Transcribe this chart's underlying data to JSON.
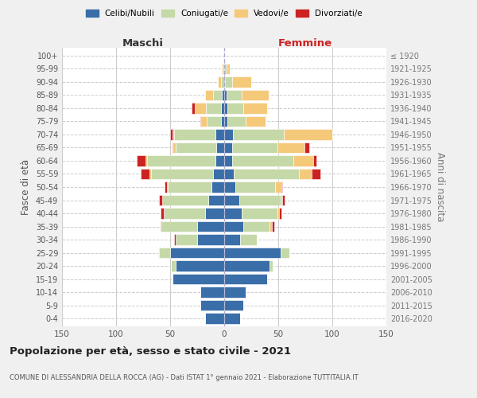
{
  "age_groups": [
    "0-4",
    "5-9",
    "10-14",
    "15-19",
    "20-24",
    "25-29",
    "30-34",
    "35-39",
    "40-44",
    "45-49",
    "50-54",
    "55-59",
    "60-64",
    "65-69",
    "70-74",
    "75-79",
    "80-84",
    "85-89",
    "90-94",
    "95-99",
    "100+"
  ],
  "birth_years": [
    "2016-2020",
    "2011-2015",
    "2006-2010",
    "2001-2005",
    "1996-2000",
    "1991-1995",
    "1986-1990",
    "1981-1985",
    "1976-1980",
    "1971-1975",
    "1966-1970",
    "1961-1965",
    "1956-1960",
    "1951-1955",
    "1946-1950",
    "1941-1945",
    "1936-1940",
    "1931-1935",
    "1926-1930",
    "1921-1925",
    "≤ 1920"
  ],
  "maschi": {
    "celibi": [
      18,
      22,
      22,
      48,
      45,
      50,
      25,
      25,
      18,
      15,
      12,
      10,
      8,
      7,
      8,
      3,
      3,
      2,
      0,
      0,
      0
    ],
    "coniugati": [
      0,
      0,
      0,
      0,
      4,
      10,
      20,
      33,
      38,
      42,
      40,
      58,
      63,
      38,
      38,
      13,
      14,
      8,
      3,
      1,
      0
    ],
    "vedovi": [
      0,
      0,
      0,
      0,
      0,
      1,
      0,
      0,
      0,
      0,
      1,
      1,
      2,
      2,
      2,
      5,
      10,
      8,
      3,
      1,
      0
    ],
    "divorziati": [
      0,
      0,
      0,
      0,
      0,
      0,
      1,
      1,
      3,
      3,
      2,
      8,
      8,
      1,
      2,
      1,
      3,
      0,
      0,
      0,
      0
    ]
  },
  "femmine": {
    "nubili": [
      15,
      18,
      20,
      40,
      42,
      52,
      15,
      18,
      16,
      14,
      10,
      9,
      7,
      7,
      8,
      3,
      3,
      2,
      1,
      0,
      0
    ],
    "coniugate": [
      0,
      0,
      0,
      0,
      3,
      8,
      15,
      24,
      33,
      38,
      37,
      60,
      57,
      42,
      47,
      17,
      15,
      14,
      6,
      2,
      0
    ],
    "vedove": [
      0,
      0,
      0,
      0,
      0,
      0,
      0,
      2,
      2,
      2,
      6,
      12,
      18,
      25,
      45,
      18,
      22,
      25,
      18,
      3,
      0
    ],
    "divorziate": [
      0,
      0,
      0,
      0,
      0,
      0,
      0,
      2,
      2,
      2,
      1,
      8,
      3,
      5,
      0,
      0,
      0,
      0,
      0,
      0,
      0
    ]
  },
  "colors": {
    "celibi": "#3a6ea8",
    "coniugati": "#c5d9a8",
    "vedovi": "#f5c97a",
    "divorziati": "#cc2222"
  },
  "xlim": 150,
  "title": "Popolazione per età, sesso e stato civile - 2021",
  "subtitle": "COMUNE DI ALESSANDRIA DELLA ROCCA (AG) - Dati ISTAT 1° gennaio 2021 - Elaborazione TUTTITALIA.IT",
  "ylabel": "Fasce di età",
  "right_ylabel": "Anni di nascita",
  "xlabel_left": "Maschi",
  "xlabel_right": "Femmine",
  "background_color": "#f0f0f0",
  "plot_bg": "#ffffff",
  "legend_labels": [
    "Celibi/Nubili",
    "Coniugati/e",
    "Vedovi/e",
    "Divorziati/e"
  ]
}
